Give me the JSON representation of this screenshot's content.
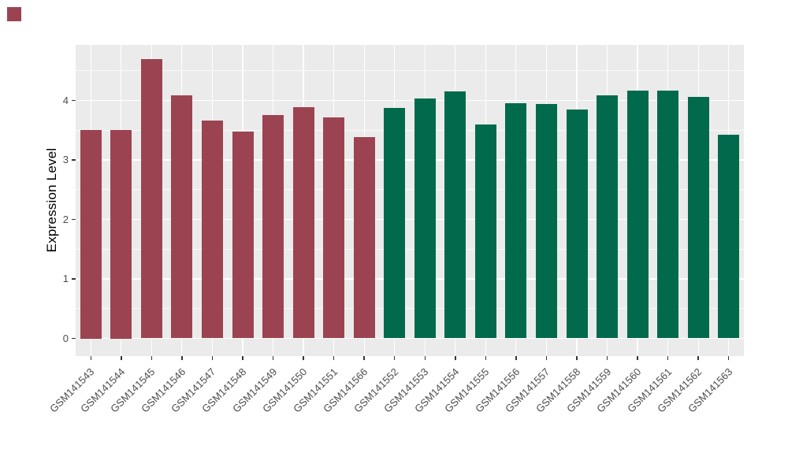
{
  "decorations": {
    "corner_square_color": "#9c4351"
  },
  "style": {
    "page_background": "#ffffff",
    "panel_background": "#ebebeb",
    "grid_color": "#ffffff",
    "tick_label_color": "#4d4d4d",
    "axis_title_color": "#000000",
    "tick_mark_color": "#333333"
  },
  "chart_data": {
    "type": "bar",
    "title": "",
    "xlabel": "",
    "ylabel": "Expression Level",
    "ylim": [
      0,
      4.93
    ],
    "yticks": [
      0,
      1,
      2,
      3,
      4
    ],
    "grid": "on",
    "legend": "none",
    "x_label_angle": 45,
    "group_colors": {
      "group1": "#9c4351",
      "group2": "#026a4c"
    },
    "bars": [
      {
        "label": "GSM141543",
        "value": 3.5,
        "group": "group1"
      },
      {
        "label": "GSM141544",
        "value": 3.5,
        "group": "group1"
      },
      {
        "label": "GSM141545",
        "value": 4.7,
        "group": "group1"
      },
      {
        "label": "GSM141546",
        "value": 4.09,
        "group": "group1"
      },
      {
        "label": "GSM141547",
        "value": 3.66,
        "group": "group1"
      },
      {
        "label": "GSM141548",
        "value": 3.48,
        "group": "group1"
      },
      {
        "label": "GSM141549",
        "value": 3.76,
        "group": "group1"
      },
      {
        "label": "GSM141550",
        "value": 3.89,
        "group": "group1"
      },
      {
        "label": "GSM141551",
        "value": 3.71,
        "group": "group1"
      },
      {
        "label": "GSM141566",
        "value": 3.39,
        "group": "group1"
      },
      {
        "label": "GSM141552",
        "value": 3.87,
        "group": "group2"
      },
      {
        "label": "GSM141553",
        "value": 4.03,
        "group": "group2"
      },
      {
        "label": "GSM141554",
        "value": 4.15,
        "group": "group2"
      },
      {
        "label": "GSM141555",
        "value": 3.6,
        "group": "group2"
      },
      {
        "label": "GSM141556",
        "value": 3.95,
        "group": "group2"
      },
      {
        "label": "GSM141557",
        "value": 3.94,
        "group": "group2"
      },
      {
        "label": "GSM141558",
        "value": 3.85,
        "group": "group2"
      },
      {
        "label": "GSM141559",
        "value": 4.08,
        "group": "group2"
      },
      {
        "label": "GSM141560",
        "value": 4.16,
        "group": "group2"
      },
      {
        "label": "GSM141561",
        "value": 4.16,
        "group": "group2"
      },
      {
        "label": "GSM141562",
        "value": 4.06,
        "group": "group2"
      },
      {
        "label": "GSM141563",
        "value": 3.43,
        "group": "group2"
      }
    ]
  }
}
